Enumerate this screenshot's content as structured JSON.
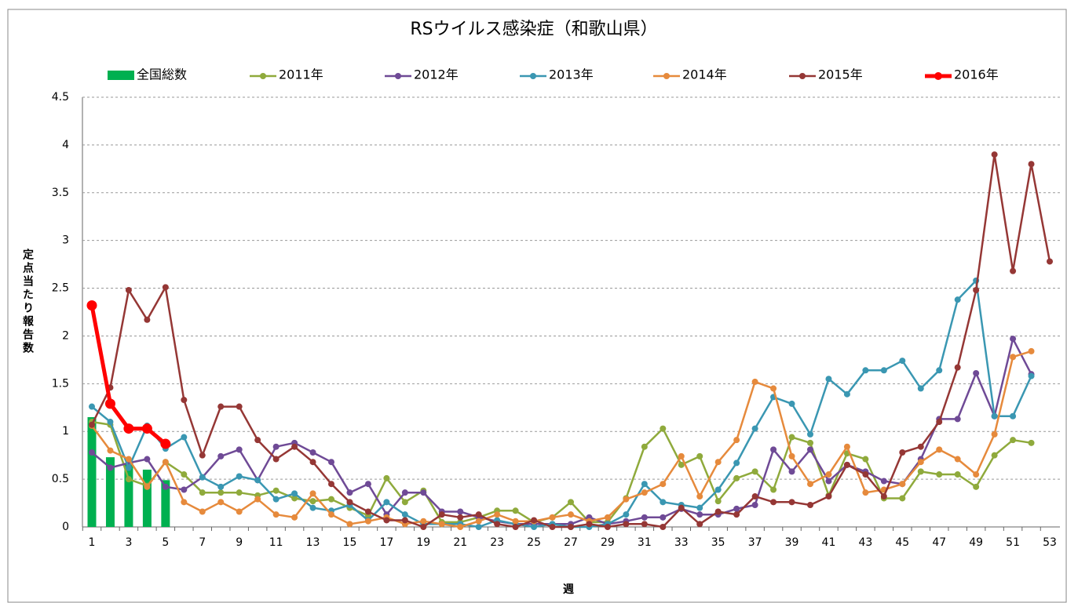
{
  "chart_data": {
    "type": "line",
    "title": "RSウイルス感染症（和歌山県）",
    "y_label": "定点当たり報告数",
    "x_label": "週",
    "categories": [
      1,
      null,
      3,
      null,
      5,
      null,
      7,
      null,
      9,
      null,
      11,
      null,
      13,
      null,
      15,
      null,
      17,
      null,
      19,
      null,
      21,
      null,
      23,
      null,
      25,
      null,
      27,
      null,
      29,
      null,
      31,
      null,
      33,
      null,
      35,
      null,
      37,
      null,
      39,
      null,
      41,
      null,
      43,
      null,
      45,
      null,
      47,
      null,
      49,
      null,
      51,
      null,
      53
    ],
    "ylim": [
      0,
      4.5
    ],
    "yticks": [
      0,
      0.5,
      1,
      1.5,
      2,
      2.5,
      3,
      3.5,
      4,
      4.5
    ],
    "grid": true,
    "series": [
      {
        "name": "全国総数",
        "type": "bar",
        "color": "#00b050",
        "values": [
          1.15,
          0.73,
          0.67,
          0.6,
          0.49,
          null,
          null,
          null,
          null,
          null,
          null,
          null,
          null,
          null,
          null,
          null,
          null,
          null,
          null,
          null,
          null,
          null,
          null,
          null,
          null,
          null,
          null,
          null,
          null,
          null,
          null,
          null,
          null,
          null,
          null,
          null,
          null,
          null,
          null,
          null,
          null,
          null,
          null,
          null,
          null,
          null,
          null,
          null,
          null,
          null,
          null,
          null,
          null
        ]
      },
      {
        "name": "2011年",
        "type": "line",
        "color": "#8faa3c",
        "width": 2.5,
        "values": [
          1.1,
          1.07,
          0.5,
          0.43,
          0.68,
          0.55,
          0.36,
          0.36,
          0.36,
          0.33,
          0.38,
          0.3,
          0.27,
          0.29,
          0.2,
          0.12,
          0.51,
          0.26,
          0.38,
          0.05,
          0.05,
          0.1,
          0.17,
          0.17,
          0.05,
          0.1,
          0.26,
          0.05,
          0.05,
          0.3,
          0.84,
          1.03,
          0.65,
          0.74,
          0.27,
          0.51,
          0.58,
          0.39,
          0.94,
          0.88,
          0.33,
          0.77,
          0.71,
          0.3,
          0.3,
          0.58,
          0.55,
          0.55,
          0.42,
          0.75,
          0.91,
          0.88,
          null
        ]
      },
      {
        "name": "2012年",
        "type": "line",
        "color": "#6f4a96",
        "width": 2.5,
        "values": [
          0.78,
          0.62,
          0.67,
          0.71,
          0.42,
          0.39,
          0.52,
          0.74,
          0.81,
          0.49,
          0.84,
          0.88,
          0.78,
          0.68,
          0.36,
          0.45,
          0.13,
          0.36,
          0.36,
          0.16,
          0.16,
          0.1,
          0.06,
          0.03,
          0.03,
          0.03,
          0.03,
          0.1,
          0.03,
          0.06,
          0.1,
          0.1,
          0.19,
          0.13,
          0.13,
          0.19,
          0.23,
          0.81,
          0.58,
          0.81,
          0.48,
          0.65,
          0.58,
          0.48,
          0.45,
          0.71,
          1.13,
          1.13,
          1.61,
          1.16,
          1.97,
          1.6,
          null
        ]
      },
      {
        "name": "2013年",
        "type": "line",
        "color": "#3a97b2",
        "width": 2.5,
        "values": [
          1.26,
          1.1,
          0.62,
          1.06,
          0.82,
          0.94,
          0.52,
          0.42,
          0.53,
          0.49,
          0.29,
          0.35,
          0.2,
          0.17,
          0.23,
          0.07,
          0.26,
          0.13,
          0.03,
          0.03,
          0.03,
          0.0,
          0.07,
          0.03,
          0.0,
          0.03,
          0.0,
          0.0,
          0.03,
          0.13,
          0.45,
          0.26,
          0.23,
          0.2,
          0.39,
          0.67,
          1.03,
          1.36,
          1.29,
          0.97,
          1.55,
          1.39,
          1.64,
          1.64,
          1.74,
          1.45,
          1.64,
          2.38,
          2.58,
          1.16,
          1.16,
          1.58,
          null
        ]
      },
      {
        "name": "2014年",
        "type": "line",
        "color": "#e68a3c",
        "width": 2.5,
        "values": [
          1.06,
          0.8,
          0.71,
          0.42,
          0.68,
          0.26,
          0.16,
          0.26,
          0.16,
          0.29,
          0.13,
          0.1,
          0.35,
          0.13,
          0.03,
          0.06,
          0.1,
          0.03,
          0.06,
          0.03,
          0.0,
          0.06,
          0.13,
          0.06,
          0.06,
          0.1,
          0.13,
          0.06,
          0.1,
          0.29,
          0.36,
          0.45,
          0.74,
          0.32,
          0.68,
          0.91,
          1.52,
          1.45,
          0.74,
          0.45,
          0.55,
          0.84,
          0.36,
          0.39,
          0.45,
          0.68,
          0.81,
          0.71,
          0.55,
          0.97,
          1.78,
          1.84,
          null
        ]
      },
      {
        "name": "2015年",
        "type": "line",
        "color": "#953735",
        "width": 2.5,
        "values": [
          1.07,
          1.46,
          2.48,
          2.17,
          2.51,
          1.33,
          0.75,
          1.26,
          1.26,
          0.91,
          0.71,
          0.84,
          0.68,
          0.45,
          0.26,
          0.16,
          0.07,
          0.07,
          0.0,
          0.13,
          0.1,
          0.13,
          0.03,
          0.0,
          0.07,
          0.0,
          0.0,
          0.03,
          0.0,
          0.03,
          0.03,
          0.0,
          0.2,
          0.03,
          0.16,
          0.13,
          0.32,
          0.26,
          0.26,
          0.23,
          0.32,
          0.65,
          0.55,
          0.32,
          0.78,
          0.84,
          1.1,
          1.67,
          2.48,
          3.9,
          2.68,
          3.8,
          2.78
        ]
      },
      {
        "name": "2016年",
        "type": "line",
        "color": "#ff0000",
        "width": 5,
        "values": [
          2.32,
          1.29,
          1.03,
          1.03,
          0.87,
          null,
          null,
          null,
          null,
          null,
          null,
          null,
          null,
          null,
          null,
          null,
          null,
          null,
          null,
          null,
          null,
          null,
          null,
          null,
          null,
          null,
          null,
          null,
          null,
          null,
          null,
          null,
          null,
          null,
          null,
          null,
          null,
          null,
          null,
          null,
          null,
          null,
          null,
          null,
          null,
          null,
          null,
          null,
          null,
          null,
          null,
          null,
          null
        ]
      }
    ]
  }
}
